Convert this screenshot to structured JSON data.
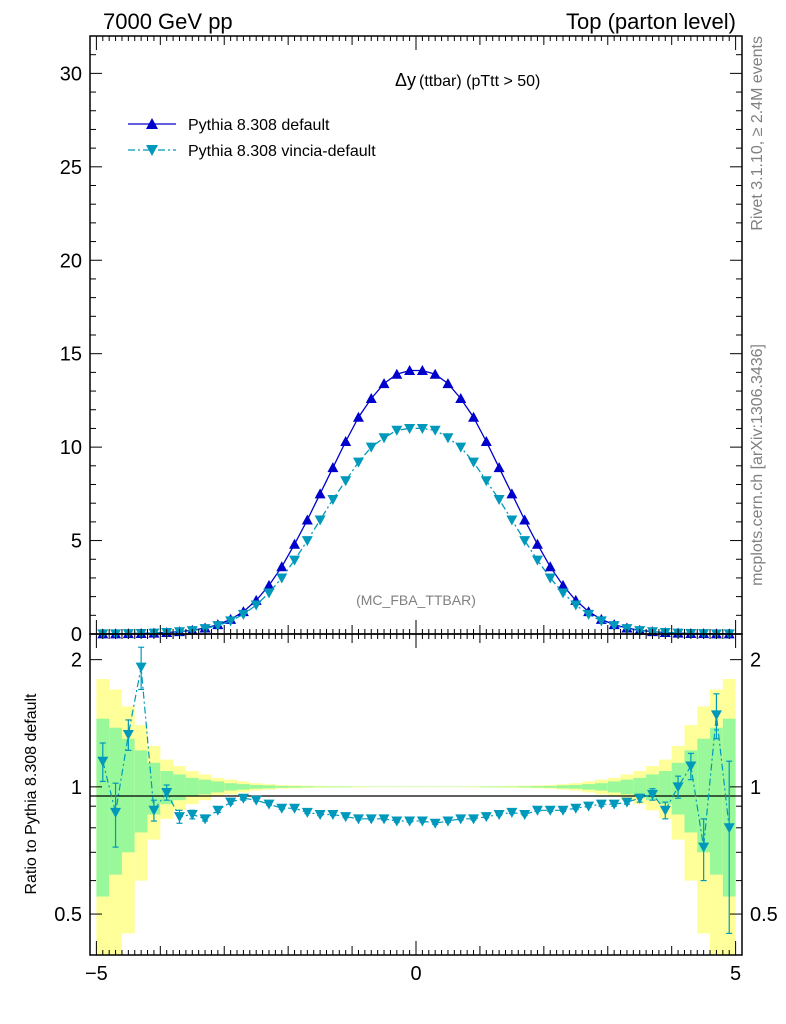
{
  "header": {
    "left": "7000 GeV pp",
    "right": "Top (parton level)"
  },
  "side_labels": {
    "rivet": "Rivet 3.1.10, ≥ 2.4M events",
    "mcplots": "mcplots.cern.ch [arXiv:1306.3436]"
  },
  "colors": {
    "series1": "#0000cc",
    "series2": "#0099bb",
    "band_outer": "#ffff99",
    "band_inner": "#99f899"
  },
  "chart_data": [
    {
      "type": "line",
      "title_symbol": "Δy",
      "title_rest": "(ttbar) (pTtt > 50)",
      "watermark": "(MC_FBA_TTBAR)",
      "xlim": [
        -5.1,
        5.1
      ],
      "ylim": [
        0,
        32
      ],
      "yticks": [
        0,
        5,
        10,
        15,
        20,
        25,
        30
      ],
      "x": [
        -4.9,
        -4.7,
        -4.5,
        -4.3,
        -4.1,
        -3.9,
        -3.7,
        -3.5,
        -3.3,
        -3.1,
        -2.9,
        -2.7,
        -2.5,
        -2.3,
        -2.1,
        -1.9,
        -1.7,
        -1.5,
        -1.3,
        -1.1,
        -0.9,
        -0.7,
        -0.5,
        -0.3,
        -0.1,
        0.1,
        0.3,
        0.5,
        0.7,
        0.9,
        1.1,
        1.3,
        1.5,
        1.7,
        1.9,
        2.1,
        2.3,
        2.5,
        2.7,
        2.9,
        3.1,
        3.3,
        3.5,
        3.7,
        3.9,
        4.1,
        4.3,
        4.5,
        4.7,
        4.9
      ],
      "series": [
        {
          "name": "Pythia 8.308 default",
          "marker": "triangle-up",
          "dash": "solid",
          "values": [
            0.01,
            0.01,
            0.02,
            0.03,
            0.05,
            0.08,
            0.13,
            0.2,
            0.32,
            0.5,
            0.78,
            1.2,
            1.8,
            2.6,
            3.6,
            4.8,
            6.1,
            7.5,
            8.9,
            10.3,
            11.6,
            12.6,
            13.4,
            13.9,
            14.1,
            14.1,
            13.9,
            13.4,
            12.6,
            11.6,
            10.3,
            8.9,
            7.5,
            6.1,
            4.8,
            3.6,
            2.6,
            1.8,
            1.2,
            0.78,
            0.5,
            0.32,
            0.2,
            0.13,
            0.08,
            0.05,
            0.03,
            0.02,
            0.01,
            0.01
          ]
        },
        {
          "name": "Pythia 8.308 vincia-default",
          "marker": "triangle-down",
          "dash": "dashdot",
          "values": [
            0.01,
            0.01,
            0.02,
            0.03,
            0.05,
            0.08,
            0.12,
            0.18,
            0.29,
            0.45,
            0.7,
            1.05,
            1.55,
            2.2,
            3.0,
            3.95,
            5.0,
            6.1,
            7.2,
            8.2,
            9.2,
            10.0,
            10.5,
            10.9,
            11.0,
            11.0,
            10.9,
            10.5,
            10.0,
            9.2,
            8.2,
            7.2,
            6.1,
            5.0,
            3.95,
            3.0,
            2.2,
            1.55,
            1.05,
            0.7,
            0.45,
            0.29,
            0.18,
            0.12,
            0.08,
            0.05,
            0.03,
            0.02,
            0.01,
            0.01
          ]
        }
      ]
    },
    {
      "type": "line",
      "ylabel": "Ratio to Pythia 8.308 default",
      "log_y": true,
      "ylim": [
        0.4,
        2.3
      ],
      "yticks": [
        0.5,
        1,
        2
      ],
      "xticks": [
        -5,
        0,
        5
      ],
      "xlim": [
        -5.1,
        5.1
      ],
      "x": [
        -4.9,
        -4.7,
        -4.5,
        -4.3,
        -4.1,
        -3.9,
        -3.7,
        -3.5,
        -3.3,
        -3.1,
        -2.9,
        -2.7,
        -2.5,
        -2.3,
        -2.1,
        -1.9,
        -1.7,
        -1.5,
        -1.3,
        -1.1,
        -0.9,
        -0.7,
        -0.5,
        -0.3,
        -0.1,
        0.1,
        0.3,
        0.5,
        0.7,
        0.9,
        1.1,
        1.3,
        1.5,
        1.7,
        1.9,
        2.1,
        2.3,
        2.5,
        2.7,
        2.9,
        3.1,
        3.3,
        3.5,
        3.7,
        3.9,
        4.1,
        4.3,
        4.5,
        4.7,
        4.9
      ],
      "series": [
        {
          "name": "Pythia 8.308 vincia-default",
          "values": [
            1.15,
            0.87,
            1.33,
            1.92,
            0.88,
            0.97,
            0.85,
            0.86,
            0.84,
            0.88,
            0.92,
            0.94,
            0.93,
            0.91,
            0.89,
            0.89,
            0.87,
            0.86,
            0.86,
            0.85,
            0.84,
            0.84,
            0.84,
            0.83,
            0.83,
            0.83,
            0.82,
            0.83,
            0.84,
            0.84,
            0.85,
            0.86,
            0.87,
            0.86,
            0.88,
            0.88,
            0.88,
            0.89,
            0.9,
            0.91,
            0.91,
            0.92,
            0.94,
            0.96,
            0.88,
            1.0,
            1.12,
            0.72,
            1.48,
            0.8
          ],
          "errors": [
            0.12,
            0.15,
            0.11,
            0.22,
            0.05,
            0.04,
            0.03,
            0.02,
            0.01,
            0.01,
            0.01,
            0.01,
            0.005,
            0.005,
            0.005,
            0.005,
            0.005,
            0.005,
            0.005,
            0.005,
            0.005,
            0.005,
            0.005,
            0.005,
            0.005,
            0.005,
            0.005,
            0.005,
            0.005,
            0.005,
            0.005,
            0.005,
            0.005,
            0.005,
            0.005,
            0.005,
            0.005,
            0.005,
            0.005,
            0.01,
            0.01,
            0.01,
            0.02,
            0.03,
            0.04,
            0.06,
            0.08,
            0.12,
            0.18,
            0.35
          ]
        }
      ],
      "band_outer_halfwidth": [
        0.8,
        0.7,
        0.55,
        0.4,
        0.25,
        0.16,
        0.12,
        0.09,
        0.07,
        0.05,
        0.04,
        0.03,
        0.02,
        0.015,
        0.01,
        0.008,
        0.006,
        0.005,
        0.004,
        0.003,
        0.003,
        0.002,
        0.002,
        0.002,
        0.002,
        0.002,
        0.002,
        0.002,
        0.002,
        0.003,
        0.003,
        0.004,
        0.005,
        0.006,
        0.008,
        0.01,
        0.015,
        0.02,
        0.03,
        0.04,
        0.05,
        0.07,
        0.09,
        0.12,
        0.16,
        0.25,
        0.4,
        0.55,
        0.7,
        0.8
      ],
      "band_inner_halfwidth": [
        0.45,
        0.38,
        0.3,
        0.22,
        0.14,
        0.09,
        0.07,
        0.05,
        0.04,
        0.03,
        0.02,
        0.015,
        0.01,
        0.008,
        0.005,
        0.004,
        0.003,
        0.002,
        0.002,
        0.002,
        0.001,
        0.001,
        0.001,
        0.001,
        0.001,
        0.001,
        0.001,
        0.001,
        0.001,
        0.001,
        0.002,
        0.002,
        0.002,
        0.003,
        0.004,
        0.005,
        0.008,
        0.01,
        0.015,
        0.02,
        0.03,
        0.04,
        0.05,
        0.07,
        0.09,
        0.14,
        0.22,
        0.3,
        0.38,
        0.45
      ]
    }
  ]
}
